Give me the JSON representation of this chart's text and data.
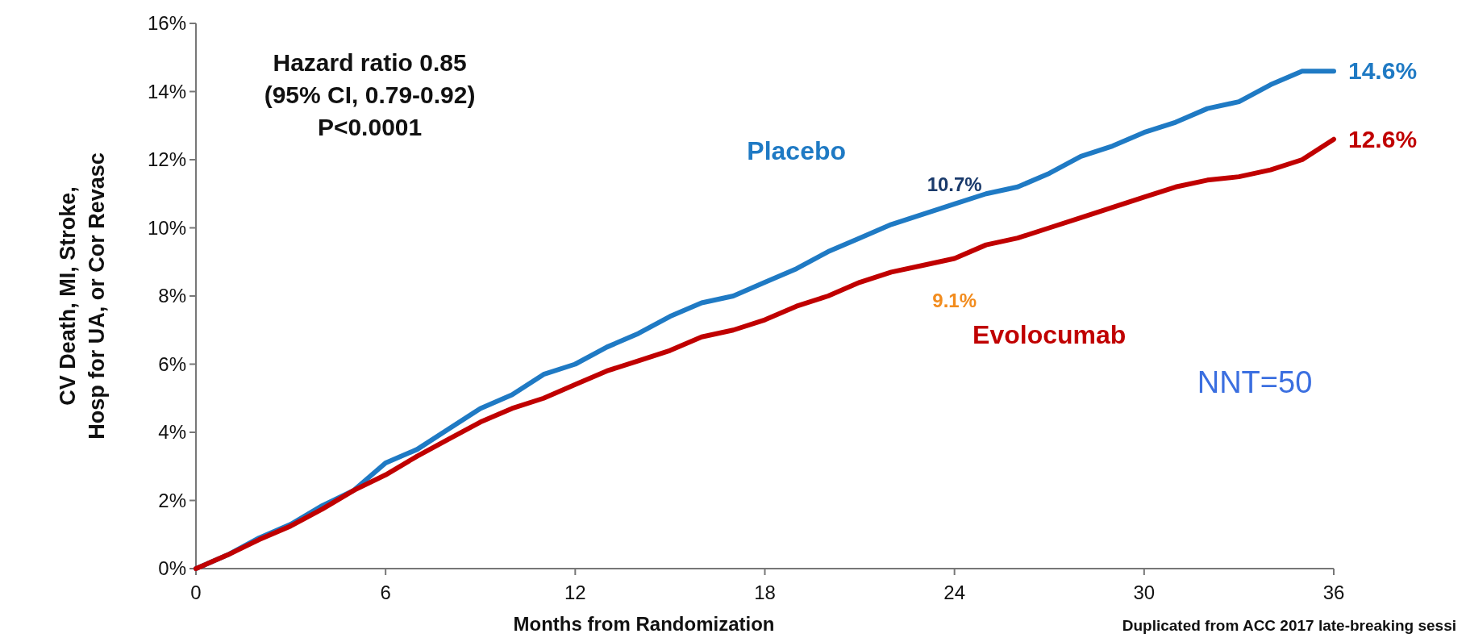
{
  "chart_data": {
    "type": "line",
    "xlabel": "Months from Randomization",
    "ylabel": "CV Death, MI, Stroke,\nHosp for UA, or Cor Revasc",
    "xlim": [
      0,
      36
    ],
    "xticks": [
      0,
      6,
      12,
      18,
      24,
      30,
      36
    ],
    "ylim": [
      0,
      16
    ],
    "yticks": [
      {
        "value": 0,
        "label": "0%"
      },
      {
        "value": 2,
        "label": "2%"
      },
      {
        "value": 4,
        "label": "4%"
      },
      {
        "value": 6,
        "label": "6%"
      },
      {
        "value": 8,
        "label": "8%"
      },
      {
        "value": 10,
        "label": "10%"
      },
      {
        "value": 12,
        "label": "12%"
      },
      {
        "value": 14,
        "label": "14%"
      },
      {
        "value": 16,
        "label": "16%"
      }
    ],
    "x": [
      0,
      1,
      2,
      3,
      4,
      5,
      6,
      7,
      8,
      9,
      10,
      11,
      12,
      13,
      14,
      15,
      16,
      17,
      18,
      19,
      20,
      21,
      22,
      23,
      24,
      25,
      26,
      27,
      28,
      29,
      30,
      31,
      32,
      33,
      34,
      35,
      36
    ],
    "series": [
      {
        "name": "Placebo",
        "color": "#1f7ac4",
        "values": [
          0,
          0.4,
          0.9,
          1.3,
          1.85,
          2.3,
          3.1,
          3.5,
          4.1,
          4.7,
          5.1,
          5.7,
          6.0,
          6.5,
          6.9,
          7.4,
          7.8,
          8.0,
          8.4,
          8.8,
          9.3,
          9.7,
          10.1,
          10.4,
          10.7,
          11.0,
          11.2,
          11.6,
          12.1,
          12.4,
          12.8,
          13.1,
          13.5,
          13.7,
          14.2,
          14.6,
          14.6
        ]
      },
      {
        "name": "Evolocumab",
        "color": "#c00000",
        "values": [
          0,
          0.4,
          0.85,
          1.25,
          1.75,
          2.3,
          2.75,
          3.3,
          3.8,
          4.3,
          4.7,
          5.0,
          5.4,
          5.8,
          6.1,
          6.4,
          6.8,
          7.0,
          7.3,
          7.7,
          8.0,
          8.4,
          8.7,
          8.9,
          9.1,
          9.5,
          9.7,
          10.0,
          10.3,
          10.6,
          10.9,
          11.2,
          11.4,
          11.5,
          11.7,
          12.0,
          12.6
        ]
      }
    ],
    "line_style": "solid",
    "grid": false,
    "annotations": [
      "Hazard ratio 0.85",
      "(95% CI, 0.79-0.92)",
      "P<0.0001",
      "10.7%",
      "9.1%",
      "14.6%",
      "12.6%",
      "NNT=50",
      "Duplicated from ACC 2017 late-breaking sessi"
    ]
  }
}
